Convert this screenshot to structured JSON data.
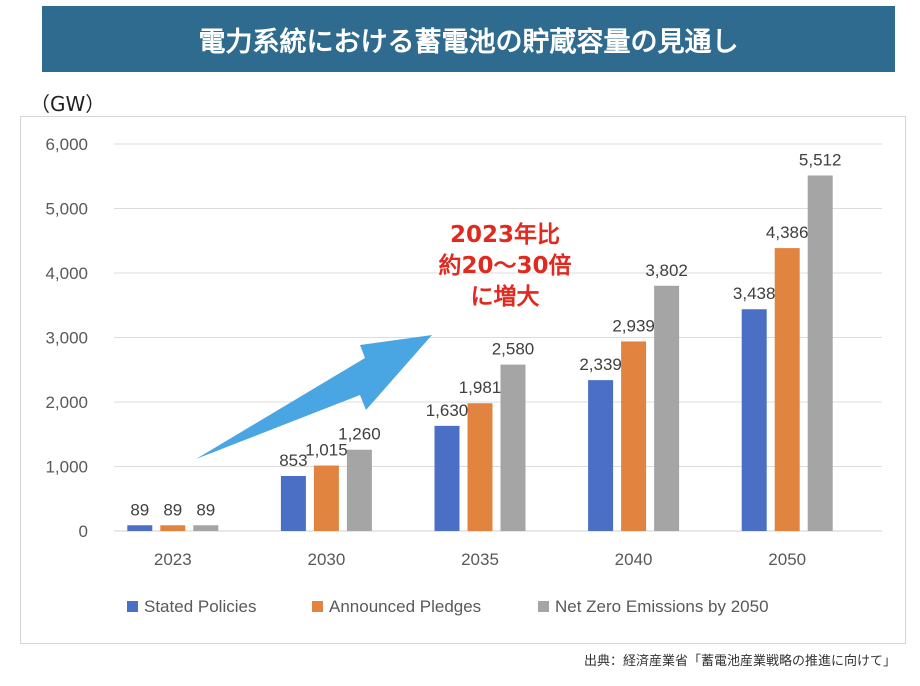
{
  "title": "電力系統における蓄電池の貯蔵容量の見通し",
  "unit_label": "（GW）",
  "source": "出典：経済産業省「蓄電池産業戦略の推進に向けて」",
  "callout": {
    "line1": "2023年比",
    "line2": "約20～30倍",
    "line3": "に増大"
  },
  "colors": {
    "title_bg": "#2e6b8f",
    "stated": "#4a6fc5",
    "announced": "#e0843f",
    "netzero": "#a5a5a5",
    "arrow": "#4aa6e3",
    "callout": "#e02a1f"
  },
  "chart_data": {
    "type": "bar",
    "title": "",
    "xlabel": "",
    "ylabel": "（GW）",
    "ylim": [
      0,
      6000
    ],
    "yticks": [
      0,
      1000,
      2000,
      3000,
      4000,
      5000,
      6000
    ],
    "ytick_labels": [
      "0",
      "1,000",
      "2,000",
      "3,000",
      "4,000",
      "5,000",
      "6,000"
    ],
    "categories": [
      "2023",
      "2030",
      "2035",
      "2040",
      "2050"
    ],
    "legend_position": "bottom",
    "series": [
      {
        "name": "Stated Policies",
        "color": "#4a6fc5",
        "values": [
          89,
          853,
          1630,
          2339,
          3438
        ],
        "labels": [
          "89",
          "853",
          "1,630",
          "2,339",
          "3,438"
        ]
      },
      {
        "name": "Announced Pledges",
        "color": "#e0843f",
        "values": [
          89,
          1015,
          1981,
          2939,
          4386
        ],
        "labels": [
          "89",
          "1,015",
          "1,981",
          "2,939",
          "4,386"
        ]
      },
      {
        "name": "Net Zero Emissions by 2050",
        "color": "#a5a5a5",
        "values": [
          89,
          1260,
          2580,
          3802,
          5512
        ],
        "labels": [
          "89",
          "1,260",
          "2,580",
          "3,802",
          "5,512"
        ]
      }
    ]
  }
}
